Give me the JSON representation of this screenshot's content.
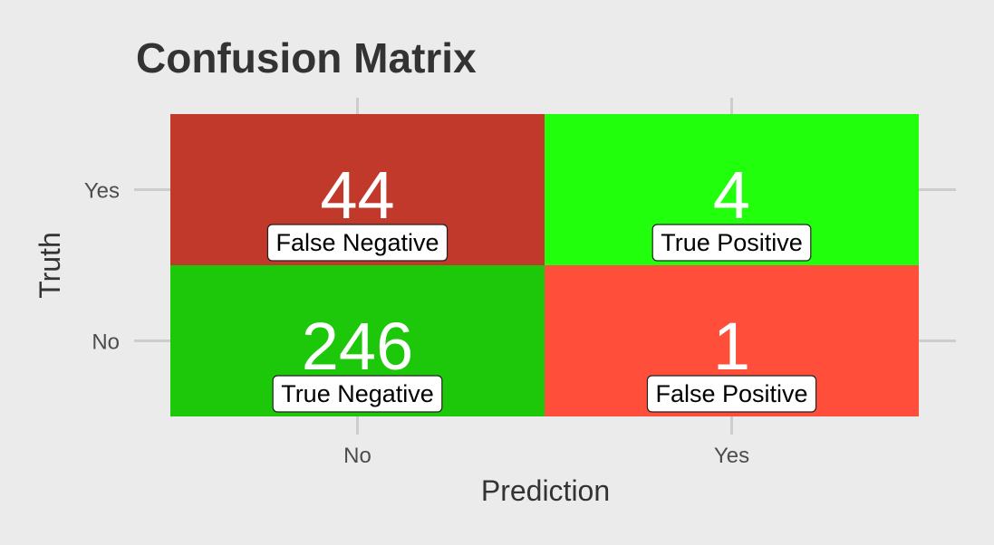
{
  "chart_data": {
    "type": "heatmap",
    "title": "Confusion Matrix",
    "xlabel": "Prediction",
    "ylabel": "Truth",
    "x_categories": [
      "No",
      "Yes"
    ],
    "y_categories": [
      "No",
      "Yes"
    ],
    "grid": true,
    "legend": "none",
    "cells": [
      {
        "x": "No",
        "y": "Yes",
        "value": 44,
        "label": "False Negative",
        "color": "#c0392b"
      },
      {
        "x": "Yes",
        "y": "Yes",
        "value": 4,
        "label": "True Positive",
        "color": "#22ff0c"
      },
      {
        "x": "No",
        "y": "No",
        "value": 246,
        "label": "True Negative",
        "color": "#1dc709"
      },
      {
        "x": "Yes",
        "y": "No",
        "value": 1,
        "label": "False Positive",
        "color": "#ff4e3a"
      }
    ]
  }
}
